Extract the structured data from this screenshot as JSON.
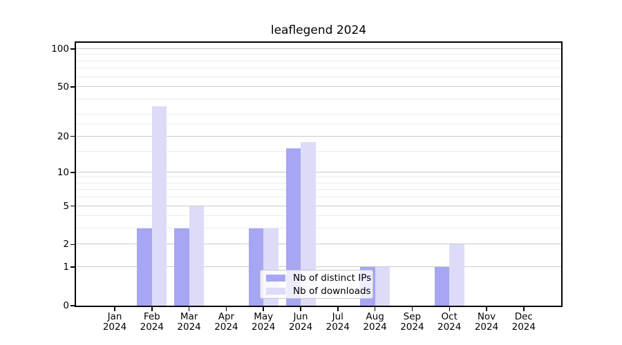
{
  "figure": {
    "title": "leaflegend 2024"
  },
  "chart_data": {
    "type": "bar",
    "title": "leaflegend 2024",
    "categories": [
      "Jan",
      "Feb",
      "Mar",
      "Apr",
      "May",
      "Jun",
      "Jul",
      "Aug",
      "Sep",
      "Oct",
      "Nov",
      "Dec"
    ],
    "category_year": "2024",
    "series": [
      {
        "name": "Nb of distinct IPs",
        "color": "#a6a6f2",
        "values": [
          0,
          3,
          3,
          0,
          3,
          16,
          0,
          1,
          0,
          1,
          0,
          0
        ]
      },
      {
        "name": "Nb of downloads",
        "color": "#dcdcf8",
        "values": [
          0,
          35,
          5,
          0,
          3,
          18,
          0,
          1,
          0,
          2,
          0,
          0
        ]
      }
    ],
    "xlabel": "",
    "ylabel": "",
    "yscale": "log10(1+y)",
    "yticks": [
      0,
      1,
      2,
      5,
      10,
      20,
      50,
      100
    ],
    "minor_gridlines": [
      3,
      4,
      6,
      7,
      8,
      9,
      15,
      25,
      30,
      40,
      60,
      70,
      80,
      90
    ],
    "ylim": [
      0,
      113
    ],
    "grid": true,
    "legend": {
      "position": "lower center",
      "labels": [
        "Nb of distinct IPs",
        "Nb of downloads"
      ]
    }
  }
}
